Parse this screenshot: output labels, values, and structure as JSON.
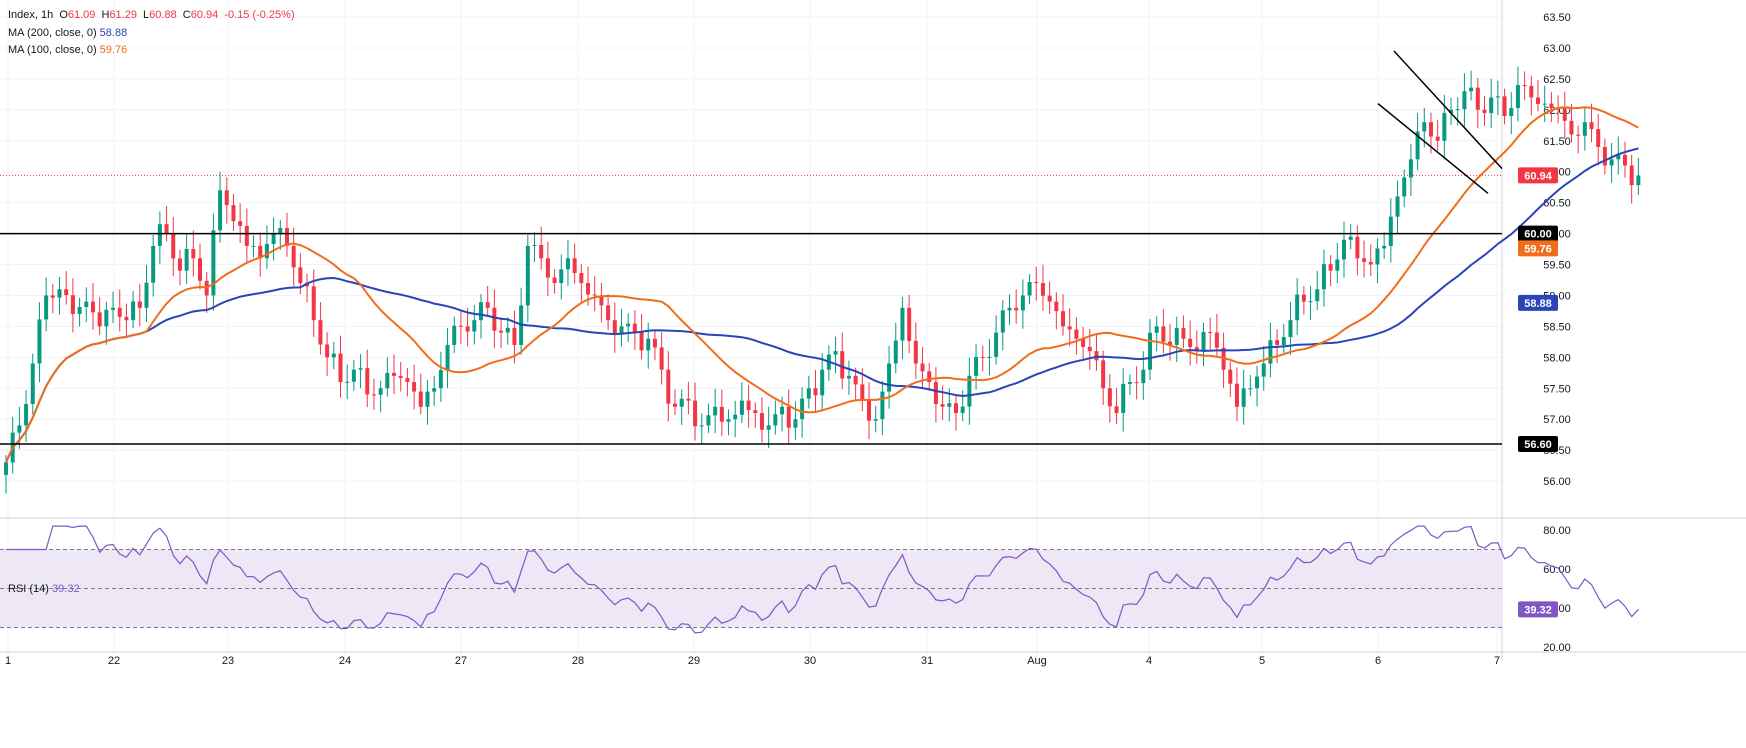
{
  "legend": {
    "symbol": "Index, 1h",
    "open_label": "O",
    "open": "61.09",
    "high_label": "H",
    "high": "61.29",
    "low_label": "L",
    "low": "60.88",
    "close_label": "C",
    "close": "60.94",
    "change": "-0.15 (-0.25%)",
    "ma200_label": "MA (200, close, 0)",
    "ma200_value": "58.88",
    "ma100_label": "MA (100, close, 0)",
    "ma100_value": "59.76",
    "rsi_label": "RSI (14)",
    "rsi_value": "39.32"
  },
  "colors": {
    "up": "#089981",
    "down": "#f23645",
    "ma200": "#2a45b8",
    "ma100": "#f06d1c",
    "rsi": "#7e57c2",
    "rsi_band": "#ede7f6",
    "grid": "#f0f3fa",
    "level": "#000000"
  },
  "chart_data": {
    "type": "candlestick",
    "x_ticks": [
      "1",
      "22",
      "23",
      "24",
      "27",
      "28",
      "29",
      "30",
      "31",
      "Aug",
      "4",
      "5",
      "6",
      "7"
    ],
    "y_ticks": [
      "56.00",
      "56.50",
      "57.00",
      "57.50",
      "58.00",
      "58.50",
      "59.00",
      "59.50",
      "60.00",
      "60.50",
      "61.00",
      "61.50",
      "62.00",
      "62.50",
      "63.00",
      "63.50"
    ],
    "ylim": [
      55.5,
      63.5
    ],
    "last_price": "60.94",
    "levels": [
      {
        "value": 60.0,
        "label": "60.00"
      },
      {
        "value": 56.6,
        "label": "56.60"
      }
    ],
    "ma_tags": [
      {
        "value": 59.76,
        "label": "59.76",
        "series": "ma100"
      },
      {
        "value": 58.88,
        "label": "58.88",
        "series": "ma200"
      }
    ],
    "anchors": [
      [
        0,
        56.3
      ],
      [
        2,
        56.9
      ],
      [
        4,
        57.9
      ],
      [
        6,
        59.0
      ],
      [
        8,
        59.1
      ],
      [
        10,
        58.7
      ],
      [
        12,
        58.9
      ],
      [
        14,
        58.5
      ],
      [
        16,
        58.8
      ],
      [
        18,
        58.6
      ],
      [
        20,
        58.8
      ],
      [
        22,
        59.8
      ],
      [
        24,
        60.0
      ],
      [
        26,
        59.4
      ],
      [
        28,
        59.6
      ],
      [
        30,
        59.0
      ],
      [
        32,
        60.7
      ],
      [
        34,
        60.2
      ],
      [
        36,
        59.8
      ],
      [
        38,
        59.6
      ],
      [
        40,
        60.0
      ],
      [
        42,
        59.8
      ],
      [
        44,
        59.2
      ],
      [
        46,
        58.6
      ],
      [
        48,
        58.0
      ],
      [
        50,
        57.6
      ],
      [
        52,
        57.8
      ],
      [
        54,
        57.4
      ],
      [
        56,
        57.5
      ],
      [
        58,
        57.7
      ],
      [
        60,
        57.6
      ],
      [
        62,
        57.2
      ],
      [
        64,
        57.5
      ],
      [
        66,
        58.2
      ],
      [
        68,
        58.5
      ],
      [
        70,
        58.6
      ],
      [
        72,
        58.8
      ],
      [
        74,
        58.4
      ],
      [
        76,
        58.2
      ],
      [
        78,
        59.8
      ],
      [
        80,
        59.6
      ],
      [
        82,
        59.2
      ],
      [
        84,
        59.6
      ],
      [
        86,
        59.2
      ],
      [
        88,
        59.0
      ],
      [
        90,
        58.6
      ],
      [
        92,
        58.5
      ],
      [
        94,
        58.4
      ],
      [
        96,
        58.3
      ],
      [
        98,
        57.8
      ],
      [
        100,
        57.2
      ],
      [
        102,
        57.3
      ],
      [
        104,
        56.9
      ],
      [
        106,
        57.2
      ],
      [
        108,
        57.0
      ],
      [
        110,
        57.3
      ],
      [
        112,
        57.1
      ],
      [
        114,
        56.9
      ],
      [
        116,
        57.2
      ],
      [
        118,
        57.0
      ],
      [
        120,
        57.5
      ],
      [
        122,
        57.8
      ],
      [
        124,
        58.1
      ],
      [
        126,
        57.7
      ],
      [
        128,
        57.3
      ],
      [
        130,
        57.0
      ],
      [
        132,
        57.9
      ],
      [
        134,
        58.8
      ],
      [
        136,
        57.9
      ],
      [
        138,
        57.6
      ],
      [
        140,
        57.2
      ],
      [
        142,
        57.1
      ],
      [
        144,
        57.7
      ],
      [
        146,
        58.0
      ],
      [
        148,
        58.4
      ],
      [
        150,
        58.8
      ],
      [
        152,
        59.0
      ],
      [
        154,
        59.2
      ],
      [
        156,
        58.9
      ],
      [
        158,
        58.5
      ],
      [
        160,
        58.3
      ],
      [
        162,
        58.1
      ],
      [
        164,
        57.5
      ],
      [
        166,
        57.1
      ],
      [
        168,
        57.6
      ],
      [
        170,
        57.8
      ],
      [
        172,
        58.5
      ],
      [
        174,
        58.2
      ],
      [
        176,
        58.3
      ],
      [
        178,
        58.1
      ],
      [
        180,
        58.4
      ],
      [
        182,
        57.8
      ],
      [
        184,
        57.2
      ],
      [
        186,
        57.5
      ],
      [
        188,
        57.9
      ],
      [
        190,
        58.2
      ],
      [
        192,
        58.6
      ],
      [
        194,
        58.9
      ],
      [
        196,
        59.1
      ],
      [
        198,
        59.4
      ],
      [
        200,
        59.9
      ],
      [
        202,
        59.6
      ],
      [
        204,
        59.5
      ],
      [
        206,
        59.8
      ],
      [
        208,
        60.6
      ],
      [
        210,
        61.2
      ],
      [
        212,
        61.8
      ],
      [
        214,
        61.5
      ],
      [
        216,
        62.0
      ],
      [
        218,
        62.3
      ],
      [
        220,
        62.0
      ],
      [
        222,
        62.2
      ],
      [
        224,
        61.9
      ],
      [
        226,
        62.4
      ],
      [
        228,
        62.2
      ],
      [
        230,
        62.1
      ],
      [
        232,
        62.0
      ],
      [
        234,
        61.6
      ],
      [
        236,
        61.8
      ],
      [
        238,
        61.4
      ],
      [
        240,
        61.2
      ],
      [
        242,
        61.1
      ],
      [
        244,
        60.94
      ]
    ],
    "rsi": {
      "ylim": [
        20,
        80
      ],
      "y_ticks": [
        "80.00",
        "60.00",
        "40.00",
        "20.00"
      ],
      "bands": [
        30,
        50,
        70
      ],
      "last": "39.32"
    }
  }
}
